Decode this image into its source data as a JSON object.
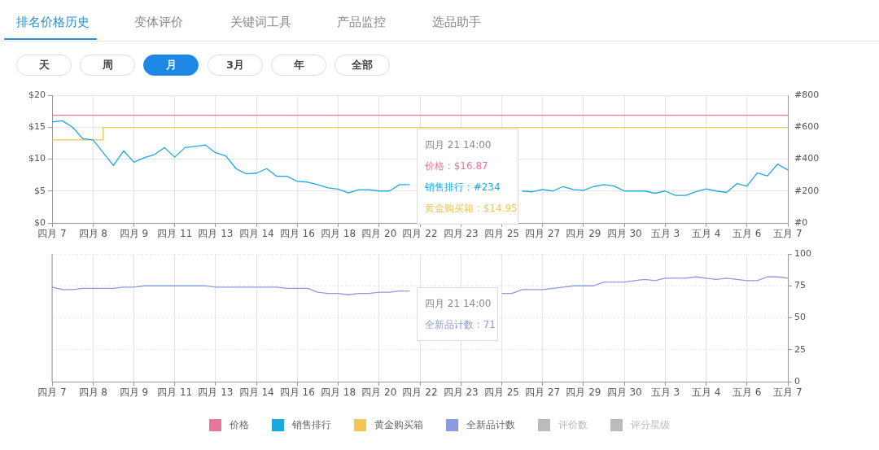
{
  "chart_data": [
    {
      "type": "other",
      "annotations": [
        "排名价格历史",
        "变体评价",
        "关键词工具",
        "产品监控",
        "选品助手",
        "天",
        "周",
        "月",
        "3月",
        "年",
        "全部"
      ]
    },
    {
      "type": "line",
      "categories": [
        "四月 7",
        null,
        null,
        null,
        "四月 8",
        null,
        null,
        null,
        "四月 9",
        null,
        null,
        null,
        "四月 11",
        null,
        null,
        null,
        "四月 13",
        null,
        null,
        null,
        "四月 14",
        null,
        null,
        null,
        "四月 16",
        null,
        null,
        null,
        "四月 18",
        null,
        null,
        null,
        "四月 20",
        null,
        null,
        null,
        "四月 22",
        null,
        null,
        null,
        "四月 23",
        null,
        null,
        null,
        "四月 25",
        null,
        null,
        null,
        "四月 27",
        null,
        null,
        null,
        "四月 29",
        null,
        null,
        null,
        "四月 30",
        null,
        null,
        null,
        "五月 3",
        null,
        null,
        null,
        "五月 4",
        null,
        null,
        null,
        "五月 6",
        null,
        null,
        null,
        "五月 7"
      ],
      "series": [
        {
          "name": "价格",
          "color": "#e8769b",
          "values": [
            16.87,
            16.87,
            16.87,
            16.87,
            16.87,
            16.87,
            16.87,
            16.87,
            16.87,
            16.87,
            16.87,
            16.87,
            16.87,
            16.87,
            16.87,
            16.87,
            16.87,
            16.87,
            16.87,
            16.87,
            16.87,
            16.87,
            16.87,
            16.87,
            16.87,
            16.87,
            16.87,
            16.87,
            16.87,
            16.87,
            16.87,
            16.87,
            16.87,
            16.87,
            16.87,
            16.87,
            16.87,
            16.87,
            16.87,
            16.87,
            16.87,
            16.87,
            16.87,
            16.87,
            16.87,
            16.87,
            16.87,
            16.87,
            16.87,
            16.87,
            16.87,
            16.87,
            16.87,
            16.87,
            16.87,
            16.87,
            16.87,
            16.87,
            16.87,
            16.87,
            16.87,
            16.87,
            16.87,
            16.87,
            16.87,
            16.87,
            16.87,
            16.87,
            16.87,
            16.87,
            16.87,
            16.87,
            16.87
          ]
        },
        {
          "name": "销售排行",
          "color": "#1ea8e0",
          "axis": "y2",
          "values": [
            632,
            640,
            600,
            528,
            520,
            440,
            360,
            452,
            380,
            408,
            428,
            472,
            412,
            472,
            480,
            488,
            440,
            420,
            340,
            308,
            312,
            340,
            292,
            292,
            260,
            256,
            240,
            220,
            212,
            188,
            208,
            208,
            200,
            200,
            240,
            240,
            null,
            null,
            null,
            null,
            null,
            null,
            null,
            null,
            null,
            null,
            200,
            195,
            210,
            200,
            228,
            210,
            204,
            228,
            240,
            231,
            200,
            200,
            200,
            186,
            200,
            173,
            173,
            195,
            213,
            200,
            191,
            246,
            231,
            313,
            295,
            368,
            332
          ]
        },
        {
          "name": "黄金购买箱",
          "color": "#f3c552",
          "type": "step",
          "values": [
            13,
            13,
            13,
            13,
            13,
            14.95,
            14.95,
            14.95,
            14.95,
            14.95,
            14.95,
            14.95,
            14.95,
            14.95,
            14.95,
            14.95,
            14.95,
            14.95,
            14.95,
            14.95,
            14.95,
            14.95,
            14.95,
            14.95,
            14.95,
            14.95,
            14.95,
            14.95,
            14.95,
            14.95,
            14.95,
            14.95,
            14.95,
            14.95,
            14.95,
            14.95,
            14.95,
            14.95,
            14.95,
            14.95,
            14.95,
            14.95,
            14.95,
            14.95,
            14.95,
            14.95,
            14.95,
            14.95,
            14.95,
            14.95,
            14.95,
            14.95,
            14.95,
            14.95,
            14.95,
            14.95,
            14.95,
            14.95,
            14.95,
            14.95,
            14.95,
            14.95,
            14.95,
            14.95,
            14.95,
            14.95,
            14.95,
            14.95,
            14.95,
            14.95,
            14.95,
            14.95,
            14.95
          ]
        }
      ],
      "ylim": [
        0,
        20
      ],
      "yticks": [
        {
          "value": 0,
          "label": "$0"
        },
        {
          "value": 5,
          "label": "$5"
        },
        {
          "value": 10,
          "label": "$10"
        },
        {
          "value": 15,
          "label": "$15"
        },
        {
          "value": 20,
          "label": "$20"
        }
      ],
      "y2lim": [
        0,
        800
      ],
      "y2ticks": [
        {
          "value": 0,
          "label": "#0"
        },
        {
          "value": 200,
          "label": "#200"
        },
        {
          "value": 400,
          "label": "#400"
        },
        {
          "value": 600,
          "label": "#600"
        },
        {
          "value": 800,
          "label": "#800"
        }
      ],
      "grid": true,
      "legend": "bottom",
      "annotations": [
        "四月 21 14:00",
        "价格 : $16.87",
        "销售排行 : #234",
        "黄金购买箱 : $14.95"
      ]
    },
    {
      "type": "line",
      "categories": [
        "四月 7",
        null,
        null,
        null,
        "四月 8",
        null,
        null,
        null,
        "四月 9",
        null,
        null,
        null,
        "四月 11",
        null,
        null,
        null,
        "四月 13",
        null,
        null,
        null,
        "四月 14",
        null,
        null,
        null,
        "四月 16",
        null,
        null,
        null,
        "四月 18",
        null,
        null,
        null,
        "四月 20",
        null,
        null,
        null,
        "四月 22",
        null,
        null,
        null,
        "四月 23",
        null,
        null,
        null,
        "四月 25",
        null,
        null,
        null,
        "四月 27",
        null,
        null,
        null,
        "四月 29",
        null,
        null,
        null,
        "四月 30",
        null,
        null,
        null,
        "五月 3",
        null,
        null,
        null,
        "五月 4",
        null,
        null,
        null,
        "五月 6",
        null,
        null,
        null,
        "五月 7"
      ],
      "series": [
        {
          "name": "全新品计数",
          "color": "#8c9be0",
          "axis": "y2",
          "values": [
            74,
            72,
            72,
            73,
            73,
            73,
            73,
            74,
            74,
            75,
            75,
            75,
            75,
            75,
            75,
            75,
            74,
            74,
            74,
            74,
            74,
            74,
            74,
            73,
            73,
            73,
            70,
            69,
            69,
            68,
            69,
            69,
            70,
            70,
            71,
            71,
            null,
            null,
            null,
            null,
            null,
            null,
            null,
            null,
            69,
            69,
            72,
            72,
            72,
            73,
            74,
            75,
            75,
            75,
            78,
            78,
            78,
            79,
            80,
            79,
            81,
            81,
            81,
            82,
            81,
            80,
            81,
            80,
            79,
            79,
            82,
            82,
            81
          ]
        },
        {
          "name": "评价数",
          "color": "#bbbbbb",
          "axis": "y2",
          "values": [
            null,
            null,
            null,
            null,
            null,
            null,
            null,
            null,
            null,
            null,
            null,
            null,
            null,
            null,
            null,
            null,
            null,
            null,
            null,
            null,
            null,
            null,
            null,
            null,
            null,
            null,
            null,
            null,
            null,
            null,
            null,
            null,
            null,
            null,
            null,
            null,
            null,
            null,
            null,
            null,
            null,
            null,
            null,
            null,
            null,
            null,
            null,
            null,
            null,
            null,
            null,
            null,
            null,
            null,
            null,
            null,
            null,
            null,
            null,
            null,
            null,
            null,
            null,
            null,
            null,
            null,
            null,
            null,
            null,
            null,
            null,
            null,
            null
          ]
        },
        {
          "name": "评分星级",
          "color": "#bbbbbb",
          "axis": "y2",
          "values": [
            null,
            null,
            null,
            null,
            null,
            null,
            null,
            null,
            null,
            null,
            null,
            null,
            null,
            null,
            null,
            null,
            null,
            null,
            null,
            null,
            null,
            null,
            null,
            null,
            null,
            null,
            null,
            null,
            null,
            null,
            null,
            null,
            null,
            null,
            null,
            null,
            null,
            null,
            null,
            null,
            null,
            null,
            null,
            null,
            null,
            null,
            null,
            null,
            null,
            null,
            null,
            null,
            null,
            null,
            null,
            null,
            null,
            null,
            null,
            null,
            null,
            null,
            null,
            null,
            null,
            null,
            null,
            null,
            null,
            null,
            null,
            null,
            null
          ]
        }
      ],
      "y2lim": [
        0,
        100
      ],
      "y2ticks": [
        0,
        25,
        50,
        75,
        100
      ],
      "grid": true,
      "legend": "bottom",
      "annotations": [
        "四月 21 14:00",
        "全新品计数 : 71"
      ]
    }
  ]
}
